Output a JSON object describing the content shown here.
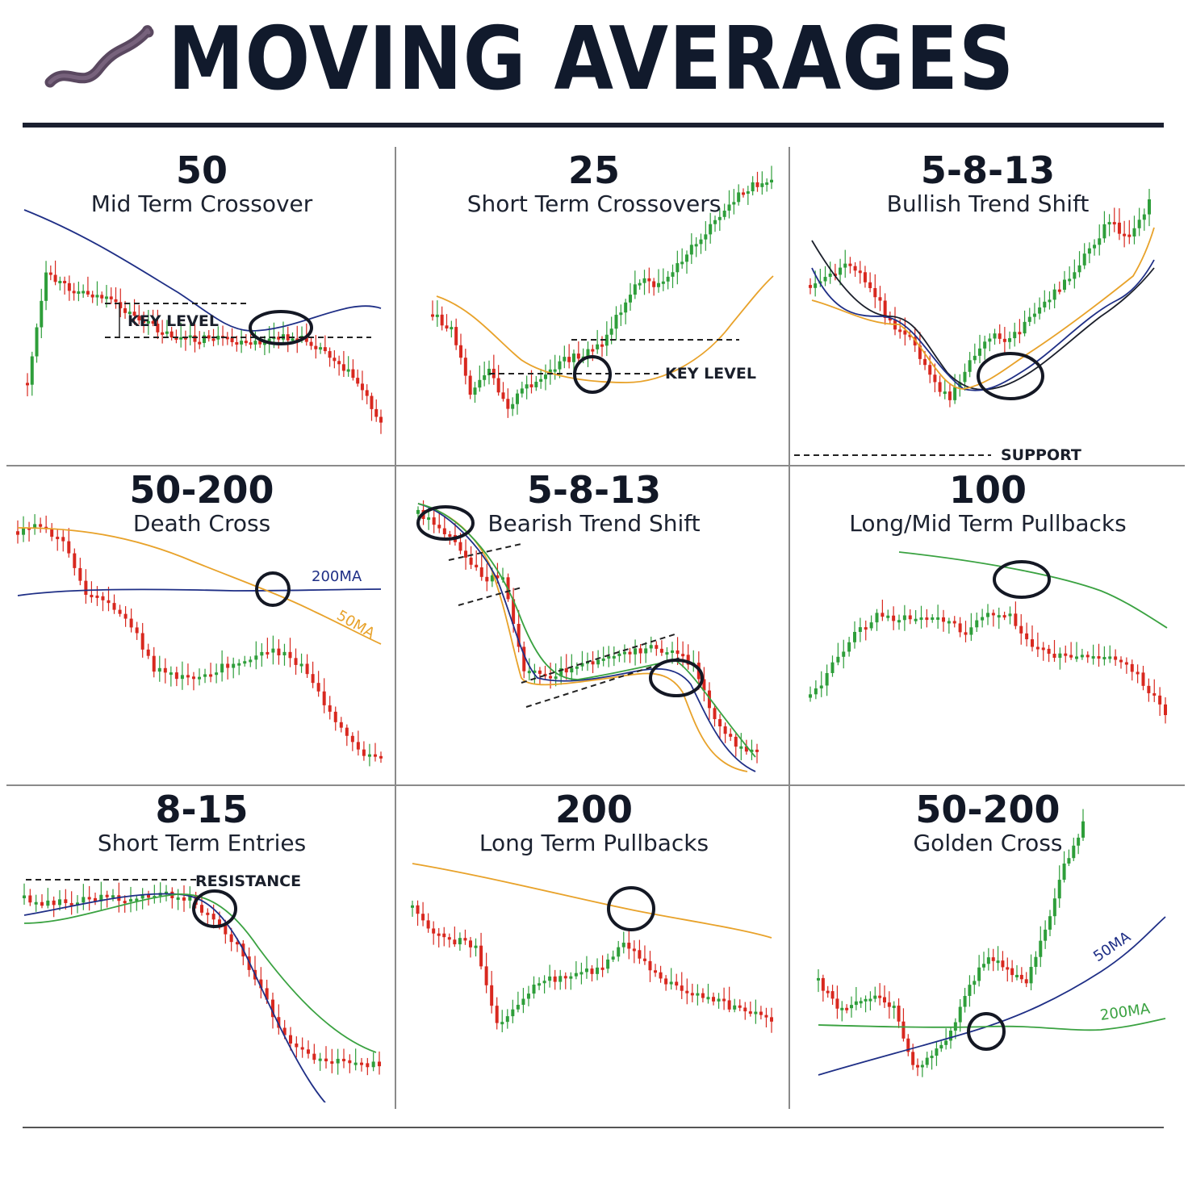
{
  "header": {
    "title": "MOVING AVERAGES",
    "logo_icon": "wavy-line-icon"
  },
  "colors": {
    "bull": "#2e9e3a",
    "bear": "#d8281f",
    "ma_blue": "#1f2f86",
    "ma_orange": "#e8a22a",
    "ma_green": "#3aa241",
    "ma_black": "#1b1f2b",
    "text": "#121a2e"
  },
  "panels": [
    {
      "number": "50",
      "subtitle": "Mid Term Crossover",
      "annotations": [
        "KEY LEVEL"
      ]
    },
    {
      "number": "25",
      "subtitle": "Short Term Crossovers",
      "annotations": [
        "KEY LEVEL"
      ]
    },
    {
      "number": "5-8-13",
      "subtitle": "Bullish Trend Shift",
      "annotations": [
        "SUPPORT"
      ]
    },
    {
      "number": "50-200",
      "subtitle": "Death Cross",
      "annotations": [
        "200MA",
        "50MA"
      ]
    },
    {
      "number": "5-8-13",
      "subtitle": "Bearish Trend Shift",
      "annotations": []
    },
    {
      "number": "100",
      "subtitle": "Long/Mid Term Pullbacks",
      "annotations": []
    },
    {
      "number": "8-15",
      "subtitle": "Short Term Entries",
      "annotations": [
        "RESISTANCE"
      ]
    },
    {
      "number": "200",
      "subtitle": "Long Term Pullbacks",
      "annotations": []
    },
    {
      "number": "50-200",
      "subtitle": "Golden Cross",
      "annotations": [
        "50MA",
        "200MA"
      ]
    }
  ],
  "chart_data": [
    {
      "type": "line",
      "title": "50",
      "subtitle": "Mid Term Crossover",
      "series": [
        {
          "values": [
            30,
            70,
            66,
            64,
            62,
            58,
            54,
            50,
            47,
            46,
            47,
            45,
            44,
            46,
            47,
            46,
            42,
            36,
            28,
            15
          ]
        }
      ],
      "ma_series": [
        {
          "period": 50,
          "values": [
            82,
            76,
            71,
            66,
            60,
            55,
            50,
            46,
            44,
            45,
            47,
            48,
            48,
            46,
            45
          ]
        }
      ],
      "annotations": [
        "KEY LEVEL"
      ]
    },
    {
      "type": "line",
      "title": "25",
      "subtitle": "Short Term Crossovers",
      "series": [
        {
          "values": [
            50,
            45,
            22,
            30,
            18,
            25,
            28,
            34,
            36,
            40,
            52,
            62,
            60,
            68,
            75,
            82,
            90,
            95,
            98
          ]
        }
      ],
      "ma_series": [
        {
          "period": 25,
          "values": [
            70,
            65,
            55,
            42,
            35,
            32,
            30,
            32,
            36,
            44,
            55,
            68
          ]
        }
      ],
      "annotations": [
        "KEY LEVEL"
      ]
    },
    {
      "type": "line",
      "title": "5-8-13",
      "subtitle": "Bullish Trend Shift",
      "series": [
        {
          "values": [
            62,
            66,
            70,
            62,
            48,
            42,
            30,
            20,
            36,
            44,
            42,
            50,
            58,
            65,
            75,
            85,
            78,
            92
          ]
        }
      ],
      "ma_series": [
        {
          "period": 5
        },
        {
          "period": 8
        },
        {
          "period": 13
        }
      ],
      "annotations": [
        "SUPPORT"
      ]
    },
    {
      "type": "line",
      "title": "50-200",
      "subtitle": "Death Cross",
      "series": [
        {
          "values": [
            88,
            90,
            84,
            66,
            62,
            55,
            40,
            36,
            38,
            40,
            42,
            46,
            44,
            36,
            20,
            10,
            8
          ]
        }
      ],
      "ma_series": [
        {
          "name": "200MA"
        },
        {
          "name": "50MA"
        }
      ],
      "annotations": [
        "200MA",
        "50MA"
      ]
    },
    {
      "type": "line",
      "title": "5-8-13",
      "subtitle": "Bearish Trend Shift",
      "series": [
        {
          "values": [
            92,
            88,
            80,
            70,
            70,
            38,
            36,
            38,
            40,
            42,
            44,
            46,
            45,
            40,
            20,
            12,
            10
          ]
        }
      ],
      "ma_series": [
        {
          "period": 5
        },
        {
          "period": 8
        },
        {
          "period": 13
        }
      ],
      "annotations": []
    },
    {
      "type": "line",
      "title": "100",
      "subtitle": "Long/Mid Term Pullbacks",
      "series": [
        {
          "values": [
            30,
            50,
            70,
            82,
            80,
            80,
            80,
            72,
            82,
            82,
            64,
            56,
            55,
            55,
            54,
            40,
            20
          ]
        }
      ],
      "ma_series": [
        {
          "period": 100,
          "values": [
            90,
            86,
            82,
            76,
            68
          ]
        }
      ],
      "annotations": []
    },
    {
      "type": "line",
      "title": "8-15",
      "subtitle": "Short Term Entries",
      "series": [
        {
          "values": [
            90,
            88,
            88,
            90,
            90,
            90,
            92,
            90,
            80,
            70,
            50,
            30,
            22,
            20,
            20,
            18
          ]
        }
      ],
      "ma_series": [
        {
          "period": 8
        },
        {
          "period": 15
        }
      ],
      "annotations": [
        "RESISTANCE"
      ]
    },
    {
      "type": "line",
      "title": "200",
      "subtitle": "Long Term Pullbacks",
      "series": [
        {
          "values": [
            88,
            75,
            72,
            70,
            30,
            42,
            52,
            54,
            56,
            58,
            70,
            62,
            52,
            48,
            44,
            40,
            36,
            34
          ]
        }
      ],
      "ma_series": [
        {
          "period": 200,
          "values": [
            92,
            86,
            78,
            70,
            62
          ]
        }
      ],
      "annotations": []
    },
    {
      "type": "line",
      "title": "50-200",
      "subtitle": "Golden Cross",
      "series": [
        {
          "values": [
            40,
            30,
            32,
            34,
            30,
            10,
            12,
            22,
            38,
            48,
            44,
            40,
            58,
            80,
            95
          ]
        }
      ],
      "ma_series": [
        {
          "name": "50MA",
          "values": [
            10,
            16,
            24,
            34,
            46,
            60,
            80
          ]
        },
        {
          "name": "200MA",
          "values": [
            30,
            30,
            28,
            28,
            30,
            36
          ]
        }
      ],
      "annotations": [
        "50MA",
        "200MA"
      ]
    }
  ]
}
